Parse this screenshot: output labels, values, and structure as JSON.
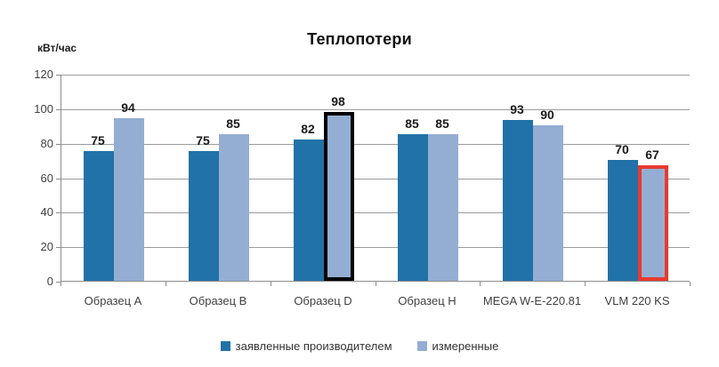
{
  "chart_data": {
    "type": "bar",
    "title": "Теплопотери",
    "ylabel": "кВт/час",
    "xlabel": "",
    "categories": [
      "Образец A",
      "Образец B",
      "Образец D",
      "Образец H",
      "MEGA W-E-220.81",
      "VLM 220 KS"
    ],
    "series": [
      {
        "name": "заявленные производителем",
        "color": "#2172a8",
        "values": [
          75,
          75,
          82,
          85,
          93,
          70
        ]
      },
      {
        "name": "измеренные",
        "color": "#94aed3",
        "values": [
          94,
          85,
          98,
          85,
          90,
          67
        ]
      }
    ],
    "ylim": [
      0,
      120
    ],
    "ytick_step": 20,
    "grid": true,
    "legend_position": "bottom",
    "highlights": [
      {
        "category_index": 2,
        "series_index": 1,
        "outline_color": "#000000",
        "outline_width": 4
      },
      {
        "category_index": 5,
        "series_index": 1,
        "outline_color": "#e8392d",
        "outline_width": 4
      }
    ],
    "colors": {
      "gridline": "#9b9b9b",
      "axis": "#8c8c8c",
      "tick_text": "#3f3f3f",
      "value_text": "#1a1a1a"
    }
  }
}
